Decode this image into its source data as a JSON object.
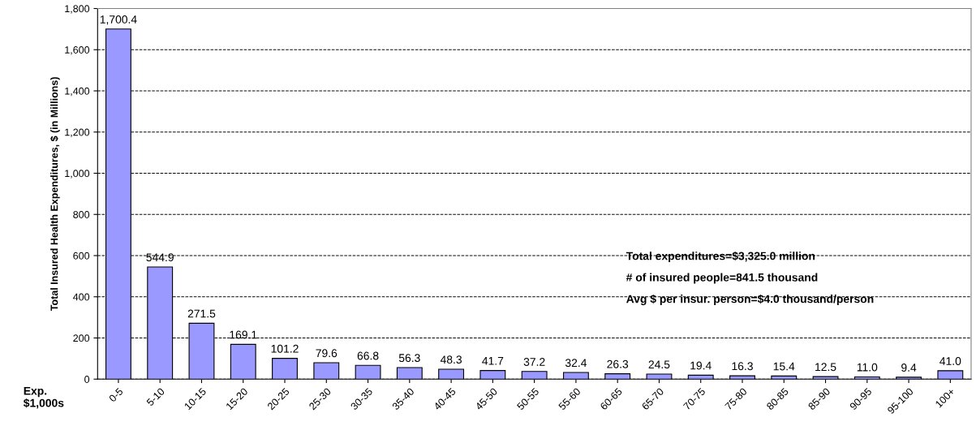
{
  "chart_data": {
    "type": "bar",
    "ylabel": "Total Insured Health Expenditures, $ (in Millions)",
    "xlabel": "Exp.\n$1,000s",
    "categories": [
      "0-5",
      "5-10",
      "10-15",
      "15-20",
      "20-25",
      "25-30",
      "30-35",
      "35-40",
      "40-45",
      "45-50",
      "50-55",
      "55-60",
      "60-65",
      "65-70",
      "70-75",
      "75-80",
      "80-85",
      "85-90",
      "90-95",
      "95-100",
      "100+"
    ],
    "values": [
      1700.4,
      544.9,
      271.5,
      169.1,
      101.2,
      79.6,
      66.8,
      56.3,
      48.3,
      41.7,
      37.2,
      32.4,
      26.3,
      24.5,
      19.4,
      16.3,
      15.4,
      12.5,
      11.0,
      9.4,
      41.0
    ],
    "value_labels": [
      "1,700.4",
      "544.9",
      "271.5",
      "169.1",
      "101.2",
      "79.6",
      "66.8",
      "56.3",
      "48.3",
      "41.7",
      "37.2",
      "32.4",
      "26.3",
      "24.5",
      "19.4",
      "16.3",
      "15.4",
      "12.5",
      "11.0",
      "9.4",
      "41.0"
    ],
    "color": "#9999ff",
    "ylim": [
      0,
      1800
    ],
    "yticks": [
      0,
      200,
      400,
      600,
      800,
      {
        "value": 1000,
        "label": "1,000"
      },
      {
        "value": 1200,
        "label": "1,200"
      },
      {
        "value": 1400,
        "label": "1,400"
      },
      {
        "value": 1600,
        "label": "1,600"
      },
      {
        "value": 1800,
        "label": "1,800"
      }
    ],
    "grid": "y",
    "line_style": "dashed",
    "annotations": [
      "Total expenditures=$3,325.0 million",
      "# of insured people=841.5 thousand",
      "Avg $ per insur. person=$4.0 thousand/person"
    ]
  }
}
